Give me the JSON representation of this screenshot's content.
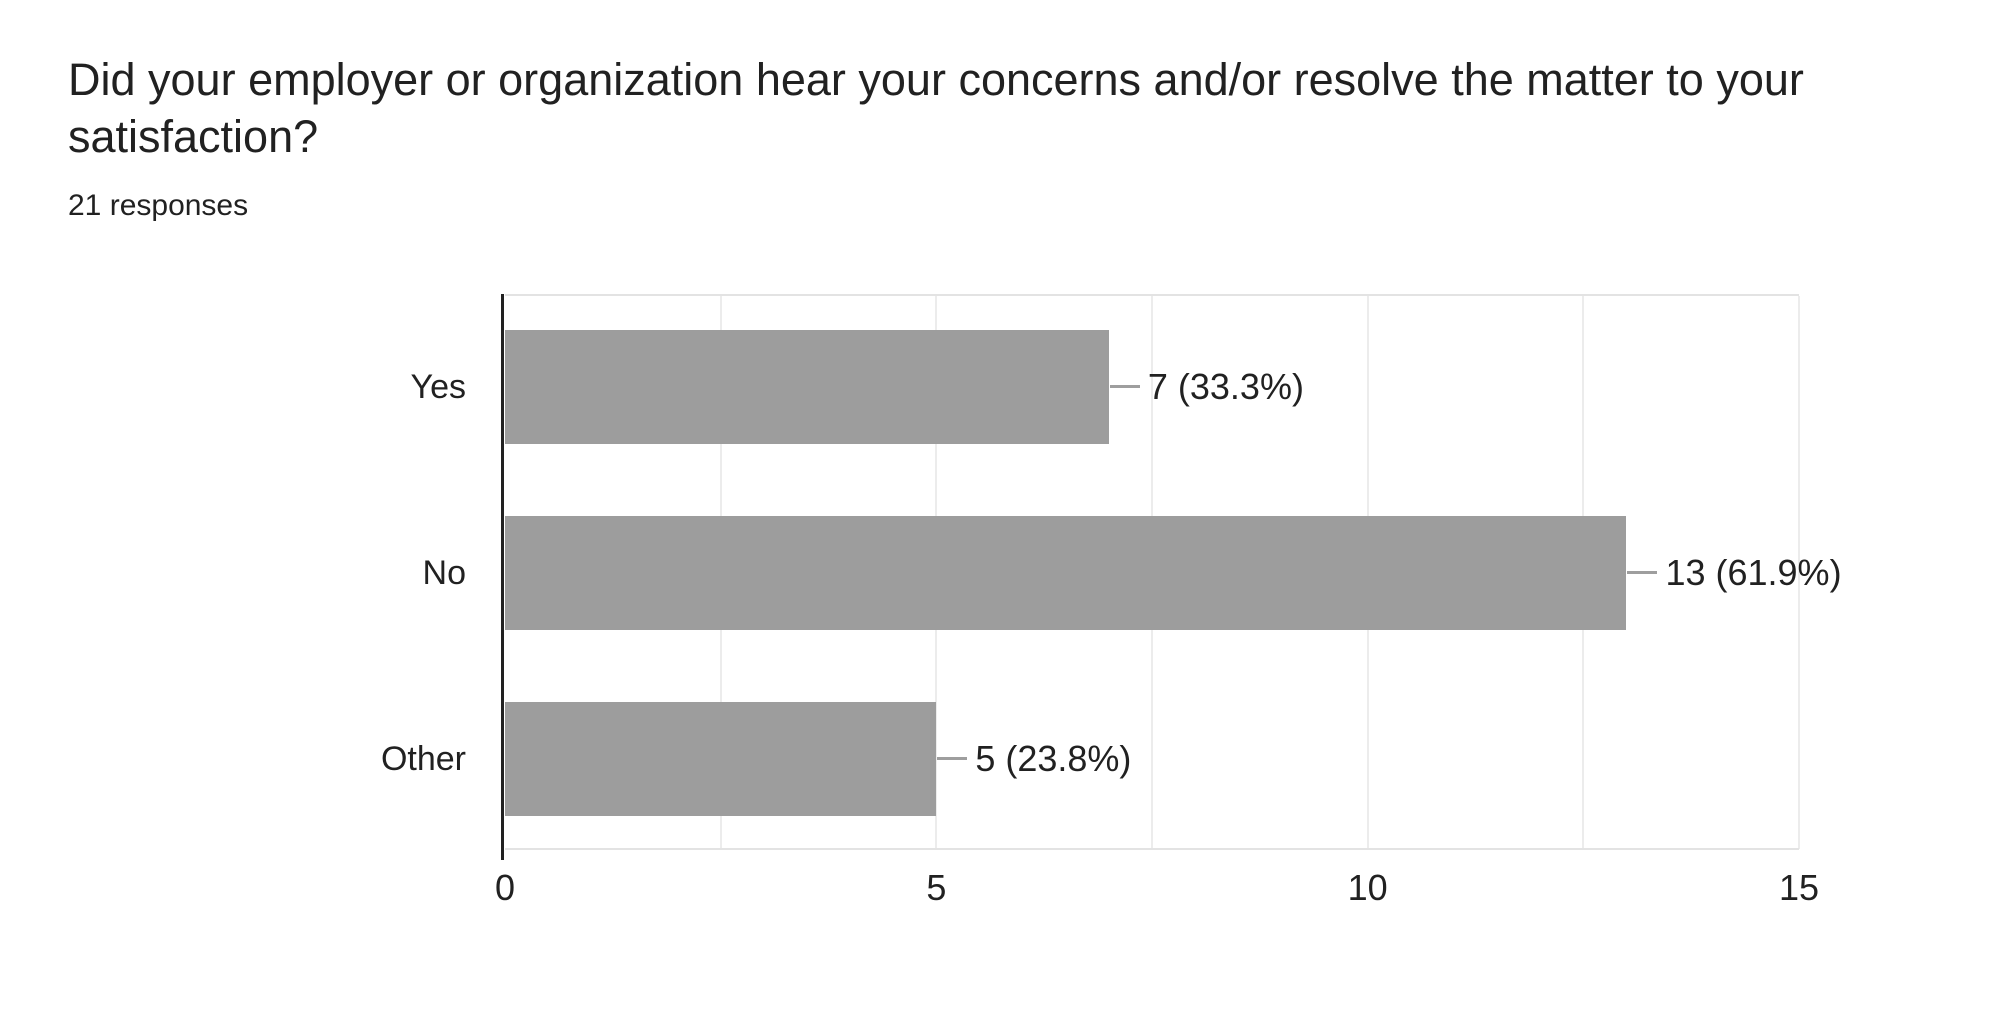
{
  "header": {
    "title": "Did your employer or organization hear your concerns and/or resolve the matter to your satisfaction?",
    "response_count_label": "21 responses"
  },
  "chart_data": {
    "type": "bar",
    "orientation": "horizontal",
    "title": "Did your employer or organization hear your concerns and/or resolve the matter to your satisfaction?",
    "subtitle": "21 responses",
    "total_responses": 21,
    "categories": [
      "Yes",
      "No",
      "Other"
    ],
    "values": [
      7,
      13,
      5
    ],
    "percentages": [
      33.3,
      61.9,
      23.8
    ],
    "value_labels": [
      "7 (33.3%)",
      "13 (61.9%)",
      "5 (23.8%)"
    ],
    "xlim": [
      0,
      15
    ],
    "x_ticks": [
      "0",
      "5",
      "10",
      "15"
    ],
    "x_tick_values": [
      0,
      5,
      10,
      15
    ],
    "gridline_values": [
      2.5,
      5,
      7.5,
      10,
      12.5,
      15
    ],
    "grid": "vertical-light",
    "legend_position": "none"
  },
  "colors": {
    "background": "#ffffff",
    "bar_fill": "#9d9d9d",
    "connector": "#9e9e9e",
    "axis_line": "#212121",
    "gridline": "#ececec",
    "plot_border": "#e3e3e3",
    "text_primary": "#212121"
  }
}
